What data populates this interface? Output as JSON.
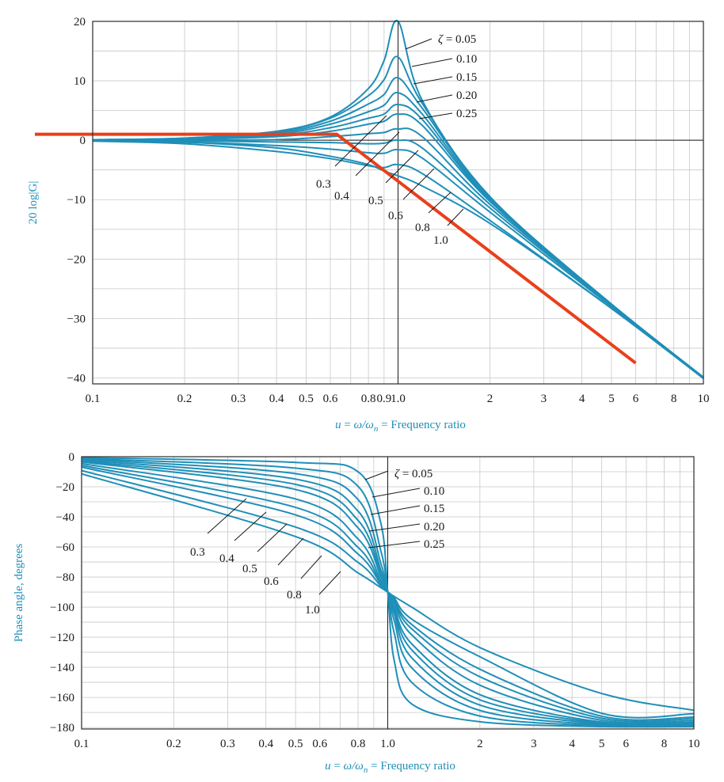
{
  "chart_data": [
    {
      "type": "line",
      "ylabel": "20 log|G|",
      "xlabel": "u = ω/ωn = Frequency ratio",
      "xscale": "log",
      "xlim": [
        0.1,
        10
      ],
      "ylim": [
        -41,
        20
      ],
      "yticks": [
        20,
        10,
        0,
        -10,
        -20,
        -30,
        -40
      ],
      "xticks": [
        0.1,
        0.2,
        0.3,
        0.4,
        0.5,
        0.6,
        0.8,
        0.9,
        1.0,
        2,
        3,
        4,
        5,
        6,
        8,
        10
      ],
      "xtick_labels": [
        "0.1",
        "0.2",
        "0.3",
        "0.4",
        "0.5",
        "0.6",
        "0.8",
        "0.9",
        "1.0",
        "2",
        "3",
        "4",
        "5",
        "6",
        "8",
        "10"
      ],
      "zeta_values": [
        0.05,
        0.1,
        0.15,
        0.2,
        0.25,
        0.3,
        0.4,
        0.5,
        0.6,
        0.8,
        1.0
      ],
      "curve_label_text": [
        "ζ = 0.05",
        "0.10",
        "0.15",
        "0.20",
        "0.25",
        "0.3",
        "0.4",
        "0.5",
        "0.6",
        "0.8",
        "1.0"
      ],
      "series": [
        {
          "name": "ζ = 0.05",
          "x": [
            0.1,
            0.2,
            0.4,
            0.6,
            0.8,
            0.9,
            1.0,
            1.2,
            2,
            5,
            10
          ],
          "y": [
            0.09,
            0.36,
            1.5,
            3.9,
            8.7,
            13.4,
            20.0,
            6.7,
            -9.5,
            -27.6,
            -39.9
          ]
        },
        {
          "name": "0.10",
          "x": [
            0.1,
            0.2,
            0.4,
            0.6,
            0.8,
            0.9,
            1.0,
            1.2,
            2,
            5,
            10
          ],
          "y": [
            0.08,
            0.34,
            1.4,
            3.7,
            7.5,
            10.2,
            14.0,
            6.2,
            -9.6,
            -27.6,
            -39.9
          ]
        },
        {
          "name": "0.15",
          "x": [
            0.1,
            0.2,
            0.4,
            0.6,
            0.8,
            0.9,
            1.0,
            1.2,
            2,
            5,
            10
          ],
          "y": [
            0.07,
            0.31,
            1.2,
            3.2,
            6.1,
            7.7,
            10.5,
            5.4,
            -9.7,
            -27.6,
            -39.9
          ]
        },
        {
          "name": "0.20",
          "x": [
            0.1,
            0.2,
            0.4,
            0.6,
            0.8,
            0.9,
            1.0,
            1.2,
            2,
            5,
            10
          ],
          "y": [
            0.06,
            0.26,
            1.0,
            2.7,
            4.8,
            5.9,
            8.0,
            4.4,
            -9.9,
            -27.6,
            -39.9
          ]
        },
        {
          "name": "0.25",
          "x": [
            0.1,
            0.2,
            0.4,
            0.6,
            0.8,
            0.9,
            1.0,
            1.2,
            2,
            5,
            10
          ],
          "y": [
            0.05,
            0.2,
            0.8,
            2.1,
            3.7,
            4.4,
            6.0,
            3.5,
            -10.1,
            -27.6,
            -39.9
          ]
        },
        {
          "name": "0.3",
          "x": [
            0.1,
            0.2,
            0.4,
            0.6,
            0.8,
            0.9,
            1.0,
            1.2,
            2,
            5,
            10
          ],
          "y": [
            0.03,
            0.14,
            0.6,
            1.5,
            2.7,
            3.2,
            4.4,
            2.5,
            -10.3,
            -27.6,
            -39.9
          ]
        },
        {
          "name": "0.4",
          "x": [
            0.1,
            0.2,
            0.4,
            0.6,
            0.8,
            0.9,
            1.0,
            1.2,
            2,
            5,
            10
          ],
          "y": [
            0.0,
            0.0,
            0.1,
            0.6,
            1.1,
            1.3,
            1.9,
            0.6,
            -10.8,
            -27.7,
            -39.9
          ]
        },
        {
          "name": "0.5",
          "x": [
            0.1,
            0.2,
            0.4,
            0.6,
            0.8,
            0.9,
            1.0,
            1.2,
            2,
            5,
            10
          ],
          "y": [
            -0.03,
            -0.1,
            -0.3,
            -0.4,
            -0.6,
            -0.5,
            0.0,
            -1.3,
            -11.4,
            -27.8,
            -39.9
          ]
        },
        {
          "name": "0.6",
          "x": [
            0.1,
            0.2,
            0.4,
            0.6,
            0.8,
            0.9,
            1.0,
            1.2,
            2,
            5,
            10
          ],
          "y": [
            -0.07,
            -0.3,
            -0.9,
            -1.5,
            -2.1,
            -2.2,
            -1.6,
            -3.0,
            -12.1,
            -28.0,
            -40.0
          ]
        },
        {
          "name": "0.8",
          "x": [
            0.1,
            0.2,
            0.4,
            0.6,
            0.8,
            0.9,
            1.0,
            1.2,
            2,
            5,
            10
          ],
          "y": [
            -0.15,
            -0.6,
            -1.9,
            -3.1,
            -4.3,
            -4.6,
            -4.1,
            -5.6,
            -13.5,
            -28.3,
            -40.0
          ]
        },
        {
          "name": "1.0",
          "x": [
            0.1,
            0.2,
            0.4,
            0.6,
            0.8,
            0.9,
            1.0,
            1.2,
            2,
            5,
            10
          ],
          "y": [
            -0.09,
            -0.34,
            -1.3,
            -2.7,
            -4.1,
            -5.2,
            -6.0,
            -7.7,
            -14.0,
            -28.3,
            -40.1
          ]
        }
      ],
      "asymptote": {
        "x": [
          0.1,
          0.63,
          6
        ],
        "y": [
          1,
          1,
          -37.5
        ]
      }
    },
    {
      "type": "line",
      "ylabel": "Phase angle, degrees",
      "xlabel": "u = ω/ωn = Frequency ratio",
      "xscale": "log",
      "xlim": [
        0.1,
        10
      ],
      "ylim": [
        -181,
        0
      ],
      "yticks": [
        0,
        -20,
        -40,
        -60,
        -80,
        -100,
        -120,
        -140,
        -160,
        -180
      ],
      "xticks": [
        0.1,
        0.2,
        0.3,
        0.4,
        0.5,
        0.6,
        0.8,
        1.0,
        2,
        3,
        4,
        5,
        6,
        8,
        10
      ],
      "xtick_labels": [
        "0.1",
        "0.2",
        "0.3",
        "0.4",
        "0.5",
        "0.6",
        "0.8",
        "1.0",
        "2",
        "3",
        "4",
        "5",
        "6",
        "8",
        "10"
      ],
      "zeta_values": [
        0.05,
        0.1,
        0.15,
        0.2,
        0.25,
        0.3,
        0.4,
        0.5,
        0.6,
        0.8,
        1.0
      ],
      "curve_label_text": [
        "ζ = 0.05",
        "0.10",
        "0.15",
        "0.20",
        "0.25",
        "0.3",
        "0.4",
        "0.5",
        "0.6",
        "0.8",
        "1.0"
      ],
      "series": [
        {
          "name": "ζ = 0.05",
          "x": [
            0.1,
            0.5,
            0.8,
            0.95,
            1.0,
            1.05,
            1.2,
            2,
            5,
            10
          ],
          "y": [
            -0.6,
            -3.8,
            -10.0,
            -44.4,
            -90,
            -135.6,
            -164.5,
            -176.2,
            -179.4,
            -179.4
          ]
        },
        {
          "name": "0.10",
          "x": [
            0.1,
            0.5,
            0.8,
            0.95,
            1.0,
            1.05,
            1.2,
            2,
            5,
            10
          ],
          "y": [
            -1.2,
            -7.6,
            -19.7,
            -62.8,
            -90,
            -117.2,
            -150.2,
            -172.4,
            -178.8,
            -178.8
          ]
        },
        {
          "name": "0.15",
          "x": [
            0.1,
            0.5,
            0.8,
            0.95,
            1.0,
            1.05,
            1.2,
            2,
            5,
            10
          ],
          "y": [
            -1.7,
            -11.3,
            -28.5,
            -71.1,
            -90,
            -108.9,
            -140.5,
            -168.7,
            -178.2,
            -178.3
          ]
        },
        {
          "name": "0.20",
          "x": [
            0.1,
            0.5,
            0.8,
            0.95,
            1.0,
            1.05,
            1.2,
            2,
            5,
            10
          ],
          "y": [
            -2.3,
            -14.9,
            -36.2,
            -75.5,
            -90,
            -104.5,
            -133.9,
            -165.1,
            -177.6,
            -177.7
          ]
        },
        {
          "name": "0.25",
          "x": [
            0.1,
            0.5,
            0.8,
            0.95,
            1.0,
            1.05,
            1.2,
            2,
            5,
            10
          ],
          "y": [
            -2.9,
            -18.4,
            -42.3,
            -78.2,
            -90,
            -101.8,
            -128.6,
            -161.6,
            -177.0,
            -177.1
          ]
        },
        {
          "name": "0.3",
          "x": [
            0.1,
            0.5,
            0.8,
            0.95,
            1.0,
            1.05,
            1.2,
            2,
            5,
            10
          ],
          "y": [
            -3.5,
            -21.8,
            -47.3,
            -80.0,
            -90,
            -100.0,
            -124.6,
            -158.2,
            -176.4,
            -176.5
          ]
        },
        {
          "name": "0.4",
          "x": [
            0.1,
            0.5,
            0.8,
            0.95,
            1.0,
            1.05,
            1.2,
            2,
            5,
            10
          ],
          "y": [
            -4.6,
            -28.1,
            -54.7,
            -82.5,
            -90,
            -97.5,
            -118.6,
            -151.9,
            -175.2,
            -175.4
          ]
        },
        {
          "name": "0.5",
          "x": [
            0.1,
            0.5,
            0.8,
            0.95,
            1.0,
            1.05,
            1.2,
            2,
            5,
            10
          ],
          "y": [
            -5.8,
            -33.7,
            -60.3,
            -84.0,
            -90,
            -96.0,
            -114.6,
            -146.3,
            -173.9,
            -174.2
          ]
        },
        {
          "name": "0.6",
          "x": [
            0.1,
            0.5,
            0.8,
            0.95,
            1.0,
            1.05,
            1.2,
            2,
            5,
            10
          ],
          "y": [
            -6.9,
            -38.7,
            -64.7,
            -84.9,
            -90,
            -95.1,
            -111.7,
            -141.3,
            -172.5,
            -173.1
          ]
        },
        {
          "name": "0.8",
          "x": [
            0.1,
            0.5,
            0.8,
            0.95,
            1.0,
            1.05,
            1.2,
            2,
            5,
            10
          ],
          "y": [
            -9.2,
            -46.8,
            -70.3,
            -86.2,
            -90,
            -93.8,
            -108.1,
            -133.0,
            -170.6,
            -170.9
          ]
        },
        {
          "name": "1.0",
          "x": [
            0.1,
            0.5,
            0.8,
            0.95,
            1.0,
            1.05,
            1.2,
            2,
            5,
            10
          ],
          "y": [
            -11.4,
            -53.1,
            -77.3,
            -87.1,
            -90,
            -92.9,
            -100.1,
            -126.9,
            -157.4,
            -168.6
          ]
        }
      ]
    }
  ],
  "colors": {
    "curve": "#1f8fb8",
    "asymptote": "#e8401c",
    "axis_label": "#1f8fb8"
  }
}
